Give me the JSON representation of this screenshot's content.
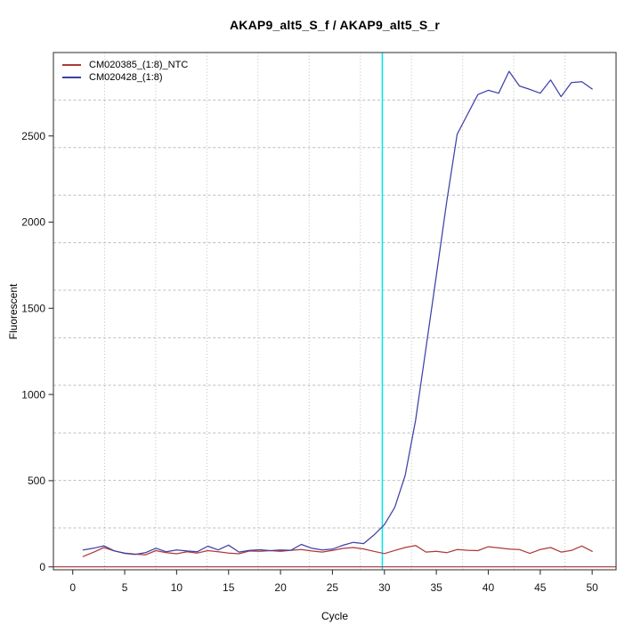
{
  "chart_data": {
    "type": "line",
    "title": "AKAP9_alt5_S_f / AKAP9_alt5_S_r",
    "xlabel": "Cycle",
    "ylabel": "Fluorescent",
    "xlim": [
      -1.86,
      52.3
    ],
    "ylim": [
      -17,
      2984
    ],
    "x_ticks": [
      0,
      5,
      10,
      15,
      20,
      25,
      30,
      35,
      40,
      45,
      50
    ],
    "y_ticks": [
      0,
      500,
      1000,
      1500,
      2000,
      2500
    ],
    "grid": {
      "vertical_divisions": 11,
      "horizontal_divisions": 11,
      "color": "#bdbdbd"
    },
    "ct_line": {
      "cycle": 29.8,
      "color": "#00e6e6"
    },
    "baseline": {
      "value": 0,
      "color": "#a03535"
    },
    "legend_position": "top-left",
    "cycles": [
      1,
      2,
      3,
      4,
      5,
      6,
      7,
      8,
      9,
      10,
      11,
      12,
      13,
      14,
      15,
      16,
      17,
      18,
      19,
      20,
      21,
      22,
      23,
      24,
      25,
      26,
      27,
      28,
      29,
      30,
      31,
      32,
      33,
      34,
      35,
      36,
      37,
      38,
      39,
      40,
      41,
      42,
      43,
      44,
      45,
      46,
      47,
      48,
      49,
      50
    ],
    "series": [
      {
        "name": "CM020385_(1:8)_NTC",
        "color": "#ac3a3a",
        "values": [
          60,
          85,
          112,
          92,
          80,
          74,
          70,
          94,
          82,
          76,
          88,
          80,
          94,
          88,
          80,
          76,
          92,
          90,
          94,
          90,
          96,
          100,
          92,
          86,
          95,
          107,
          112,
          104,
          90,
          77,
          95,
          112,
          124,
          86,
          90,
          82,
          100,
          96,
          94,
          117,
          110,
          103,
          100,
          78,
          100,
          112,
          86,
          95,
          121,
          90
        ]
      },
      {
        "name": "CM020428_(1:8)",
        "color": "#4040a8",
        "values": [
          98,
          108,
          122,
          93,
          78,
          72,
          82,
          108,
          88,
          98,
          92,
          88,
          120,
          98,
          126,
          86,
          95,
          99,
          94,
          98,
          96,
          130,
          108,
          98,
          103,
          125,
          142,
          135,
          185,
          245,
          345,
          530,
          850,
          1270,
          1690,
          2120,
          2510,
          2625,
          2740,
          2765,
          2748,
          2875,
          2790,
          2770,
          2748,
          2825,
          2728,
          2810,
          2815,
          2772
        ]
      }
    ]
  }
}
